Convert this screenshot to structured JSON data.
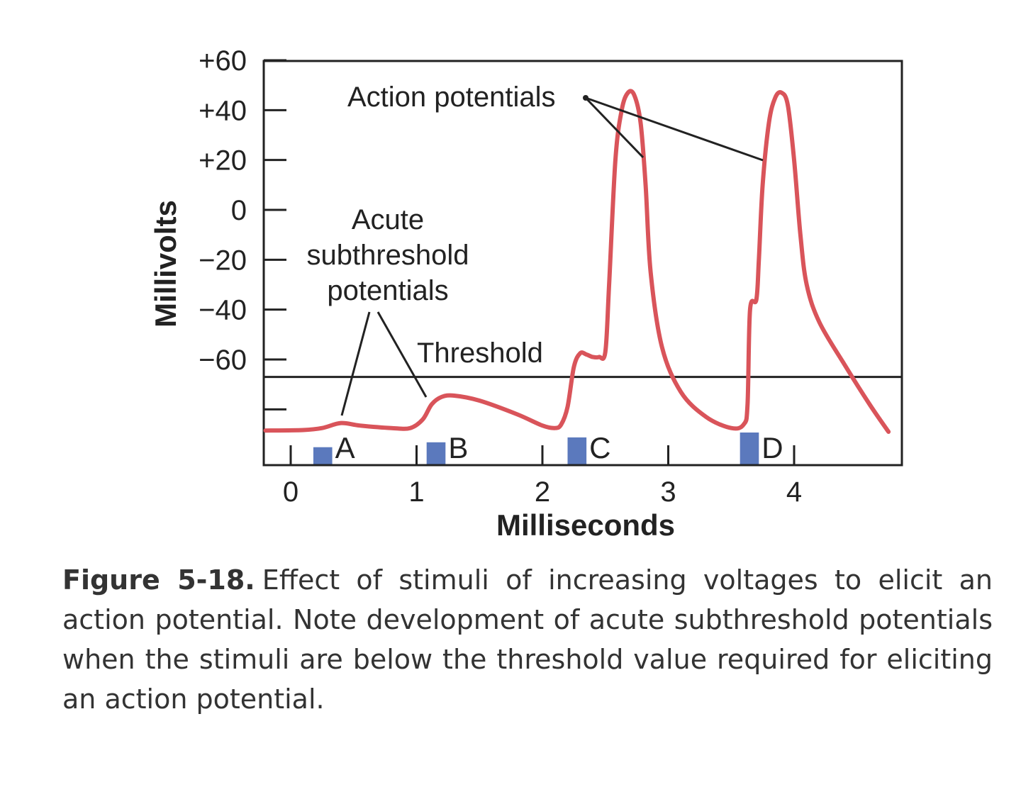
{
  "chart_data": {
    "type": "line",
    "xlabel": "Milliseconds",
    "ylabel": "Millivolts",
    "xlim": [
      -0.2,
      4.9
    ],
    "ylim": [
      -105,
      60
    ],
    "x_ticks": [
      0,
      1,
      2,
      3,
      4
    ],
    "y_ticks": [
      {
        "value": 60,
        "label": "+60"
      },
      {
        "value": 40,
        "label": "+40"
      },
      {
        "value": 20,
        "label": "+20"
      },
      {
        "value": 0,
        "label": "0"
      },
      {
        "value": -20,
        "label": "−20"
      },
      {
        "value": -40,
        "label": "−40"
      },
      {
        "value": -60,
        "label": "−60"
      },
      {
        "value": -80,
        "label": ""
      }
    ],
    "threshold": -67,
    "series": [
      {
        "color": "#d9545a",
        "points": [
          [
            -0.2,
            -88.5
          ],
          [
            0.1,
            -88.3
          ],
          [
            0.25,
            -87.5
          ],
          [
            0.4,
            -85.5
          ],
          [
            0.55,
            -86.5
          ],
          [
            0.8,
            -87.5
          ],
          [
            0.95,
            -87.5
          ],
          [
            1.05,
            -84
          ],
          [
            1.12,
            -78
          ],
          [
            1.2,
            -75
          ],
          [
            1.3,
            -74.5
          ],
          [
            1.5,
            -76.5
          ],
          [
            1.8,
            -82
          ],
          [
            2.0,
            -86.5
          ],
          [
            2.1,
            -87.5
          ],
          [
            2.15,
            -86
          ],
          [
            2.2,
            -79
          ],
          [
            2.25,
            -63
          ],
          [
            2.3,
            -57.5
          ],
          [
            2.35,
            -58
          ],
          [
            2.4,
            -59
          ],
          [
            2.45,
            -59
          ],
          [
            2.5,
            -57
          ],
          [
            2.53,
            -30
          ],
          [
            2.58,
            20
          ],
          [
            2.63,
            40
          ],
          [
            2.68,
            47
          ],
          [
            2.73,
            46
          ],
          [
            2.78,
            35
          ],
          [
            2.82,
            10
          ],
          [
            2.86,
            -25
          ],
          [
            2.95,
            -55
          ],
          [
            3.1,
            -73
          ],
          [
            3.3,
            -83
          ],
          [
            3.5,
            -87.5
          ],
          [
            3.6,
            -86
          ],
          [
            3.63,
            -78
          ],
          [
            3.65,
            -40
          ],
          [
            3.7,
            -36
          ],
          [
            3.72,
            -20
          ],
          [
            3.75,
            10
          ],
          [
            3.8,
            35
          ],
          [
            3.85,
            45
          ],
          [
            3.9,
            47
          ],
          [
            3.95,
            42
          ],
          [
            4.0,
            20
          ],
          [
            4.05,
            -10
          ],
          [
            4.1,
            -30
          ],
          [
            4.2,
            -45
          ],
          [
            4.4,
            -62
          ],
          [
            4.6,
            -78
          ],
          [
            4.75,
            -89
          ]
        ]
      }
    ],
    "stimuli": [
      {
        "label": "A",
        "x_start": 0.18,
        "x_end": 0.33,
        "height": 0.55
      },
      {
        "label": "B",
        "x_start": 1.08,
        "x_end": 1.23,
        "height": 0.7
      },
      {
        "label": "C",
        "x_start": 2.2,
        "x_end": 2.35,
        "height": 0.85
      },
      {
        "label": "D",
        "x_start": 3.57,
        "x_end": 3.72,
        "height": 1.0
      }
    ],
    "stimulus_color": "#5b79bd",
    "annotations": {
      "action_potentials": "Action potentials",
      "acute_1": "Acute",
      "acute_2": "subthreshold",
      "acute_3": "potentials",
      "threshold": "Threshold"
    }
  },
  "caption": {
    "label": "Figure 5-18.",
    "text": "Effect of stimuli of increasing voltages to elicit an action potential. Note development of acute subthreshold potentials when the stimuli are below the threshold value required for eliciting an action potential."
  }
}
